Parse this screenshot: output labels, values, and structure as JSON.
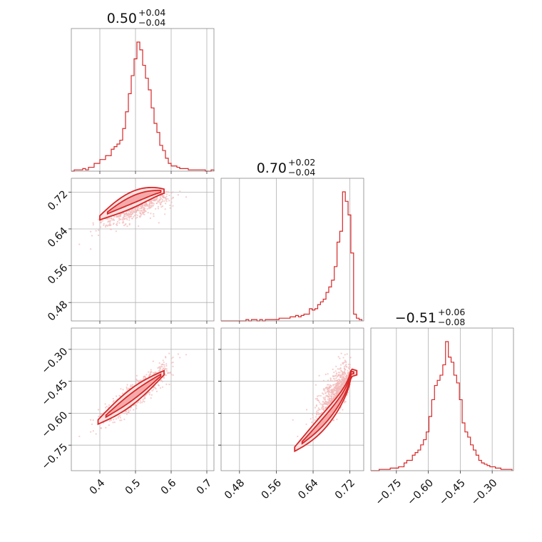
{
  "colors": {
    "accent": "#d62728",
    "point": "#f2b8b8",
    "fill_outer": "#fbe1e1",
    "fill_inner": "#f4aaaa"
  },
  "chart_data": {
    "type": "corner",
    "grid": true,
    "params": [
      {
        "title": {
          "main": "0.50",
          "plus": "+0.04",
          "minus": "−0.04"
        },
        "median": 0.5,
        "err_plus": 0.04,
        "err_minus": 0.04,
        "range": [
          0.32,
          0.72
        ],
        "ticks": [
          0.4,
          0.5,
          0.6,
          0.7
        ],
        "tick_labels": [
          "0.4",
          "0.5",
          "0.6",
          "0.7"
        ],
        "hist_bins": [
          0.32,
          0.328,
          0.336,
          0.344,
          0.352,
          0.36,
          0.368,
          0.376,
          0.384,
          0.392,
          0.4,
          0.408,
          0.416,
          0.424,
          0.432,
          0.44,
          0.448,
          0.456,
          0.464,
          0.472,
          0.48,
          0.488,
          0.496,
          0.504,
          0.512,
          0.52,
          0.528,
          0.536,
          0.544,
          0.552,
          0.56,
          0.568,
          0.576,
          0.584,
          0.592,
          0.6,
          0.608,
          0.616,
          0.624,
          0.632,
          0.64,
          0.648,
          0.656,
          0.664,
          0.672,
          0.68,
          0.688,
          0.696,
          0.704,
          0.712,
          0.72
        ],
        "hist_counts": [
          0,
          1,
          1,
          1,
          2,
          1,
          3,
          3,
          6,
          6,
          9,
          9,
          12,
          12,
          17,
          19,
          21,
          24,
          33,
          46,
          60,
          74,
          87,
          100,
          94,
          82,
          72,
          63,
          49,
          37,
          30,
          20,
          16,
          10,
          6,
          4,
          4,
          3,
          2,
          2,
          2,
          1,
          1,
          1,
          1,
          1,
          1,
          0,
          0,
          1
        ]
      },
      {
        "title": {
          "main": "0.70",
          "plus": "+0.02",
          "minus": "−0.04"
        },
        "median": 0.7,
        "err_plus": 0.02,
        "err_minus": 0.04,
        "range": [
          0.44,
          0.75
        ],
        "ticks": [
          0.48,
          0.56,
          0.64,
          0.72
        ],
        "tick_labels": [
          "0.48",
          "0.56",
          "0.64",
          "0.72"
        ],
        "hist_bins": [
          0.44,
          0.446,
          0.452,
          0.458,
          0.464,
          0.47,
          0.476,
          0.482,
          0.488,
          0.494,
          0.5,
          0.506,
          0.512,
          0.518,
          0.524,
          0.53,
          0.536,
          0.542,
          0.548,
          0.554,
          0.56,
          0.566,
          0.572,
          0.578,
          0.584,
          0.59,
          0.596,
          0.602,
          0.608,
          0.614,
          0.62,
          0.626,
          0.632,
          0.638,
          0.644,
          0.65,
          0.656,
          0.662,
          0.668,
          0.674,
          0.68,
          0.686,
          0.692,
          0.698,
          0.704,
          0.71,
          0.716,
          0.722,
          0.728,
          0.734,
          0.74,
          0.746
        ],
        "hist_counts": [
          0,
          0,
          0,
          0,
          0,
          0,
          0,
          0,
          0,
          1,
          0,
          1,
          1,
          0,
          1,
          0,
          1,
          1,
          1,
          1,
          1,
          2,
          2,
          2,
          2,
          3,
          3,
          4,
          3,
          4,
          5,
          5,
          9,
          8,
          9,
          12,
          14,
          16,
          21,
          25,
          30,
          40,
          58,
          66,
          95,
          88,
          78,
          50,
          5,
          2,
          1
        ]
      },
      {
        "title": {
          "main": "−0.51",
          "plus": "+0.06",
          "minus": "−0.08"
        },
        "median": -0.51,
        "err_plus": 0.06,
        "err_minus": 0.08,
        "range": [
          -0.87,
          -0.2
        ],
        "ticks": [
          -0.75,
          -0.6,
          -0.45,
          -0.3
        ],
        "tick_labels": [
          "−0.75",
          "−0.60",
          "−0.45",
          "−0.30"
        ],
        "hist_bins": [
          -0.87,
          -0.857,
          -0.844,
          -0.831,
          -0.818,
          -0.805,
          -0.792,
          -0.779,
          -0.766,
          -0.753,
          -0.74,
          -0.727,
          -0.714,
          -0.701,
          -0.688,
          -0.675,
          -0.662,
          -0.649,
          -0.636,
          -0.623,
          -0.61,
          -0.597,
          -0.584,
          -0.571,
          -0.558,
          -0.545,
          -0.532,
          -0.519,
          -0.506,
          -0.493,
          -0.48,
          -0.467,
          -0.454,
          -0.441,
          -0.428,
          -0.415,
          -0.402,
          -0.389,
          -0.376,
          -0.363,
          -0.35,
          -0.337,
          -0.324,
          -0.311,
          -0.298,
          -0.285,
          -0.272,
          -0.259,
          -0.246,
          -0.233,
          -0.22,
          -0.207
        ],
        "hist_counts": [
          0,
          0,
          0,
          1,
          1,
          1,
          1,
          2,
          2,
          2,
          3,
          3,
          6,
          8,
          8,
          12,
          14,
          16,
          20,
          24,
          30,
          42,
          55,
          66,
          70,
          74,
          82,
          100,
          88,
          84,
          74,
          68,
          55,
          37,
          30,
          26,
          20,
          16,
          12,
          8,
          6,
          5,
          4,
          3,
          3,
          2,
          2,
          1,
          1,
          1,
          1
        ]
      }
    ],
    "pairs": [
      {
        "x_param": 0,
        "y_param": 1,
        "relation": "positive, saturating near upper bound of parameter 2"
      },
      {
        "x_param": 0,
        "y_param": 2,
        "relation": "strong positive linear correlation"
      },
      {
        "x_param": 1,
        "y_param": 2,
        "relation": "strong positive, curved"
      }
    ]
  }
}
